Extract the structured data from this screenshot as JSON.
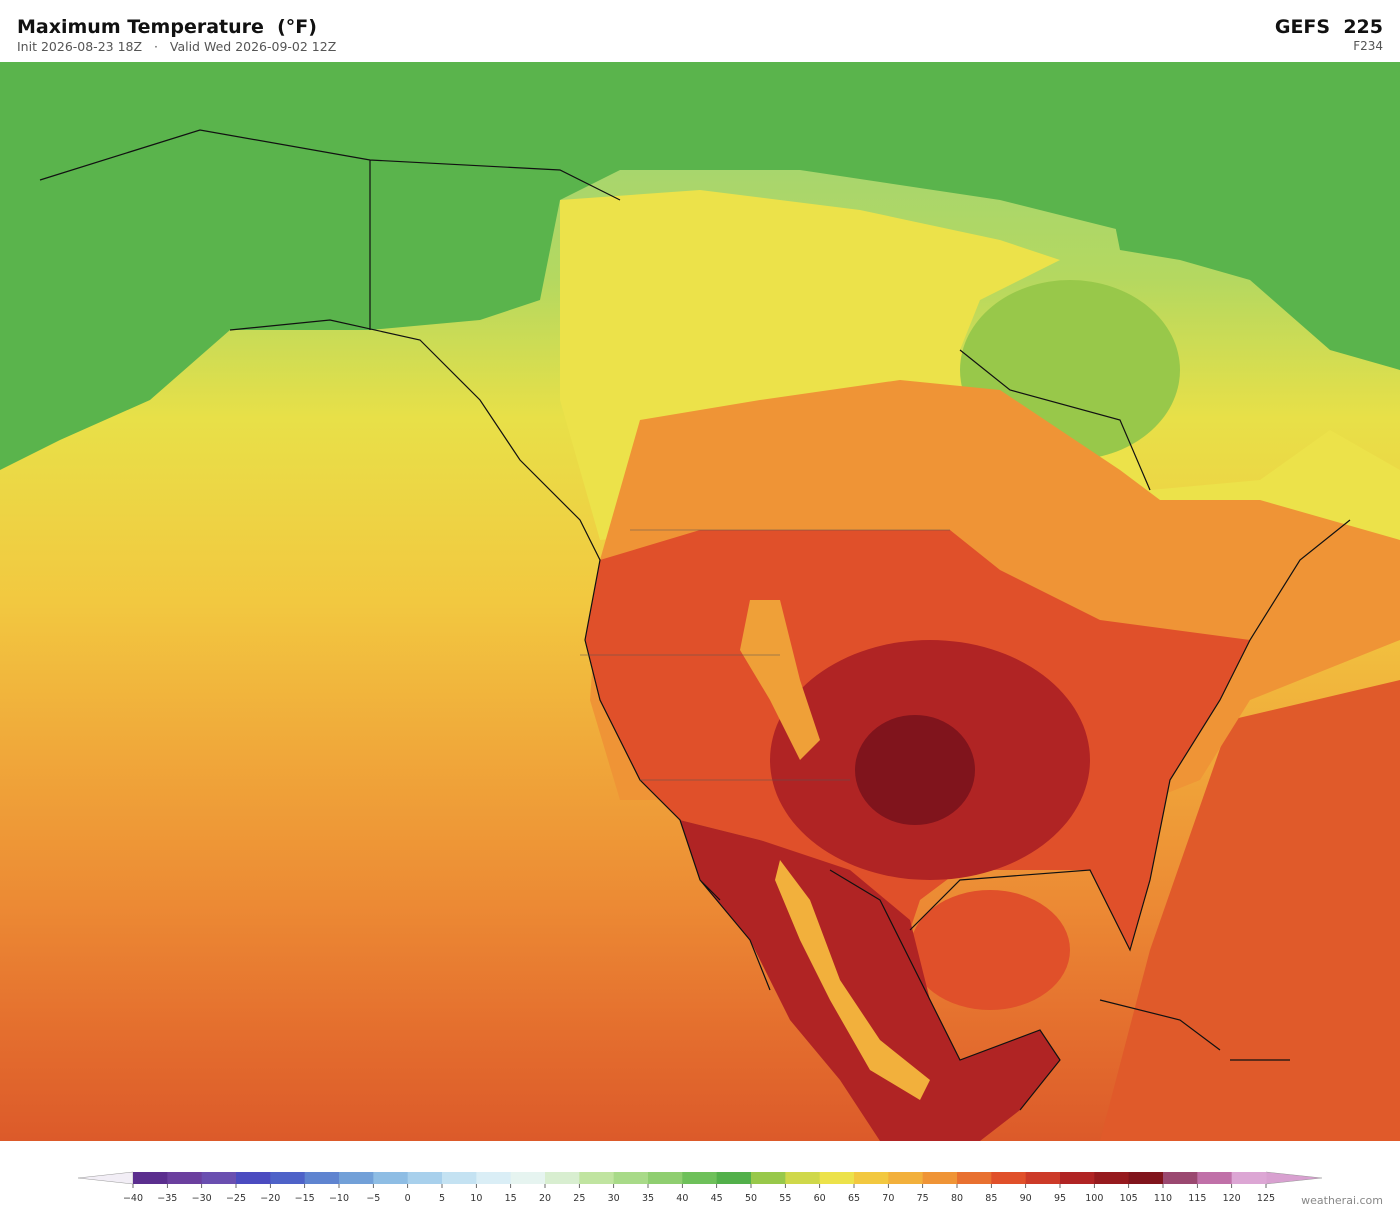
{
  "header": {
    "title": "Maximum Temperature  (°F)",
    "init": "Init 2026-08-23 18Z",
    "separator": "·",
    "valid": "Valid Wed 2026-09-02 12Z",
    "model": "GEFS  225",
    "forecast_hour": "F234"
  },
  "colorbar": {
    "ticks": [
      "−40",
      "−35",
      "−30",
      "−25",
      "−20",
      "−15",
      "−10",
      "−5",
      "0",
      "5",
      "10",
      "15",
      "20",
      "25",
      "30",
      "35",
      "40",
      "45",
      "50",
      "55",
      "60",
      "65",
      "70",
      "75",
      "80",
      "85",
      "90",
      "95",
      "100",
      "105",
      "110",
      "115",
      "120",
      "125"
    ],
    "colors": [
      "#5b2e8e",
      "#6b3f9e",
      "#6a4fb0",
      "#4b4bc0",
      "#4e62c8",
      "#5f84d0",
      "#72a0d8",
      "#8ebde4",
      "#a8d0ec",
      "#c4e2f2",
      "#daeef6",
      "#e6f4f0",
      "#d8eed0",
      "#c0e4a0",
      "#a8da88",
      "#8fce70",
      "#6ec05a",
      "#52b04a",
      "#98c84a",
      "#cfd84a",
      "#ece24a",
      "#f2c840",
      "#f2b03c",
      "#ef9436",
      "#e87030",
      "#e0502a",
      "#cc3a28",
      "#b02424",
      "#961a1e",
      "#80141c",
      "#9a4870",
      "#c070a8",
      "#dca6d4"
    ],
    "under_color": "#f2eef6",
    "over_color": "#d8a0d0"
  },
  "footer": {
    "credit": "weatherai.com"
  }
}
